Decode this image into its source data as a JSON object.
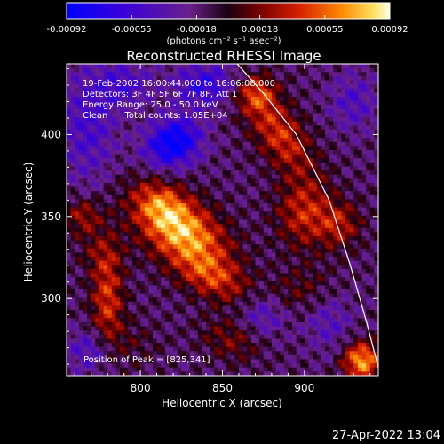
{
  "chart_data": {
    "type": "heatmap",
    "title": "Reconstructed RHESSI Image",
    "colorbar": {
      "ticks": [
        "-0.00092",
        "-0.00055",
        "-0.00018",
        "0.00018",
        "0.00055",
        "0.00092"
      ],
      "tick_values": [
        -0.00092,
        -0.00055,
        -0.00018,
        0.00018,
        0.00055,
        0.00092
      ],
      "label": "(photons cm⁻² s⁻¹ asec⁻²)",
      "range": [
        -0.00092,
        0.00092
      ]
    },
    "xlabel": "Heliocentric X (arcsec)",
    "ylabel": "Heliocentric Y (arcsec)",
    "xlim": [
      755,
      945
    ],
    "ylim": [
      253,
      443
    ],
    "x_ticks": [
      800,
      850,
      900
    ],
    "y_ticks": [
      300,
      350,
      400
    ],
    "annotations": [
      "19-Feb-2002 16:00:44.000 to 16:06:08.000",
      "Detectors: 3F 4F 5F 6F 7F 8F, Att 1",
      "Energy Range: 25.0 - 50.0 keV",
      "Clean      Total counts: 1.05E+04"
    ],
    "peak_label": "Position of Peak = [825,341]",
    "peak": [
      825,
      341
    ],
    "limb_curve": [
      [
        859,
        443
      ],
      [
        875,
        425
      ],
      [
        895,
        400
      ],
      [
        915,
        360
      ],
      [
        928,
        320
      ],
      [
        938,
        285
      ],
      [
        945,
        258
      ]
    ],
    "grid": false
  },
  "footer": {
    "date": "27-Apr-2022 13:04"
  },
  "colors": {
    "background": "#000000",
    "text": "#ffffff"
  }
}
